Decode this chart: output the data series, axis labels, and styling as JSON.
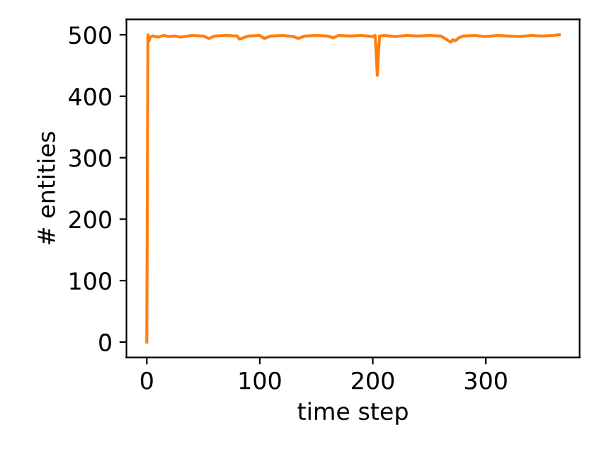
{
  "chart_data": {
    "type": "line",
    "xlabel": "time step",
    "ylabel": "# entities",
    "x": [
      0,
      1,
      2,
      3,
      5,
      10,
      15,
      20,
      25,
      30,
      40,
      50,
      55,
      60,
      70,
      80,
      82,
      90,
      100,
      104,
      110,
      120,
      130,
      134,
      140,
      150,
      160,
      165,
      170,
      180,
      190,
      200,
      202,
      203,
      204,
      205,
      206,
      210,
      220,
      230,
      240,
      250,
      260,
      264,
      267,
      269,
      271,
      273,
      276,
      280,
      290,
      300,
      310,
      320,
      330,
      340,
      350,
      360,
      365
    ],
    "series": [
      {
        "color": "#ff7f0e",
        "values": [
          0,
          500,
          490,
          496,
          498,
          496,
          499,
          497,
          498,
          496,
          499,
          498,
          494,
          498,
          499,
          498,
          493,
          498,
          499,
          494,
          498,
          499,
          497,
          494,
          498,
          499,
          498,
          495,
          499,
          498,
          499,
          497,
          499,
          470,
          434,
          470,
          498,
          499,
          497,
          499,
          498,
          499,
          498,
          494,
          490,
          488,
          492,
          490,
          495,
          498,
          499,
          497,
          499,
          498,
          497,
          499,
          498,
          499,
          500
        ]
      }
    ],
    "xlim": [
      -18,
      383
    ],
    "ylim": [
      -25,
      525
    ],
    "xticks": [
      0,
      100,
      200,
      300
    ],
    "yticks": [
      0,
      100,
      200,
      300,
      400,
      500
    ]
  }
}
